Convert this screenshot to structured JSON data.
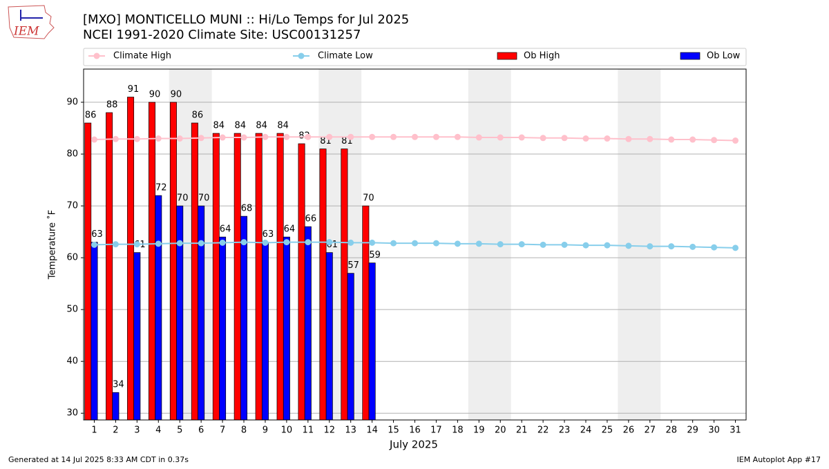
{
  "logo_text": "IEM",
  "footer_left": "Generated at 14 Jul 2025 8:33 AM CDT in 0.37s",
  "footer_right": "IEM Autoplot App #17",
  "chart_data": {
    "type": "bar",
    "title": "[MXO] MONTICELLO MUNI :: Hi/Lo Temps for Jul 2025",
    "subtitle": "NCEI 1991-2020 Climate Site: USC00131257",
    "xlabel": "July 2025",
    "ylabel": "Temperature ˚F",
    "x": [
      1,
      2,
      3,
      4,
      5,
      6,
      7,
      8,
      9,
      10,
      11,
      12,
      13,
      14,
      15,
      16,
      17,
      18,
      19,
      20,
      21,
      22,
      23,
      24,
      25,
      26,
      27,
      28,
      29,
      30,
      31
    ],
    "xticks": [
      1,
      2,
      3,
      4,
      5,
      6,
      7,
      8,
      9,
      10,
      11,
      12,
      13,
      14,
      15,
      16,
      17,
      18,
      19,
      20,
      21,
      22,
      23,
      24,
      25,
      26,
      27,
      28,
      29,
      30,
      31
    ],
    "xlim": [
      0.5,
      31.5
    ],
    "ylim": [
      28.7,
      96.4
    ],
    "yticks": [
      30,
      40,
      50,
      60,
      70,
      80,
      90
    ],
    "grid": "y",
    "shaded_days": [
      [
        5,
        6
      ],
      [
        12,
        13
      ],
      [
        19,
        20
      ],
      [
        26,
        27
      ]
    ],
    "shade_color": "#eeeeee",
    "series": [
      {
        "name": "Climate High",
        "type": "line",
        "color": "pink",
        "values": [
          82.8,
          82.9,
          82.9,
          83.0,
          83.0,
          83.1,
          83.2,
          83.2,
          83.3,
          83.3,
          83.3,
          83.3,
          83.3,
          83.3,
          83.3,
          83.3,
          83.3,
          83.3,
          83.2,
          83.2,
          83.2,
          83.1,
          83.1,
          83.0,
          83.0,
          82.9,
          82.9,
          82.8,
          82.8,
          82.7,
          82.6
        ]
      },
      {
        "name": "Climate Low",
        "type": "line",
        "color": "skyblue",
        "values": [
          62.5,
          62.6,
          62.6,
          62.7,
          62.8,
          62.8,
          62.9,
          63.0,
          62.9,
          63.0,
          63.0,
          63.0,
          62.9,
          62.9,
          62.8,
          62.8,
          62.8,
          62.7,
          62.7,
          62.6,
          62.6,
          62.5,
          62.5,
          62.4,
          62.4,
          62.3,
          62.2,
          62.2,
          62.1,
          62.0,
          61.9
        ]
      },
      {
        "name": "Ob High",
        "type": "bar",
        "color": "red",
        "values": [
          86,
          88,
          91,
          90,
          90,
          86,
          84,
          84,
          84,
          84,
          82,
          81,
          81,
          70,
          null,
          null,
          null,
          null,
          null,
          null,
          null,
          null,
          null,
          null,
          null,
          null,
          null,
          null,
          null,
          null,
          null
        ]
      },
      {
        "name": "Ob Low",
        "type": "bar",
        "color": "blue",
        "values": [
          63,
          34,
          61,
          72,
          70,
          70,
          64,
          68,
          63,
          64,
          66,
          61,
          57,
          59,
          null,
          null,
          null,
          null,
          null,
          null,
          null,
          null,
          null,
          null,
          null,
          null,
          null,
          null,
          null,
          null,
          null
        ]
      }
    ]
  }
}
